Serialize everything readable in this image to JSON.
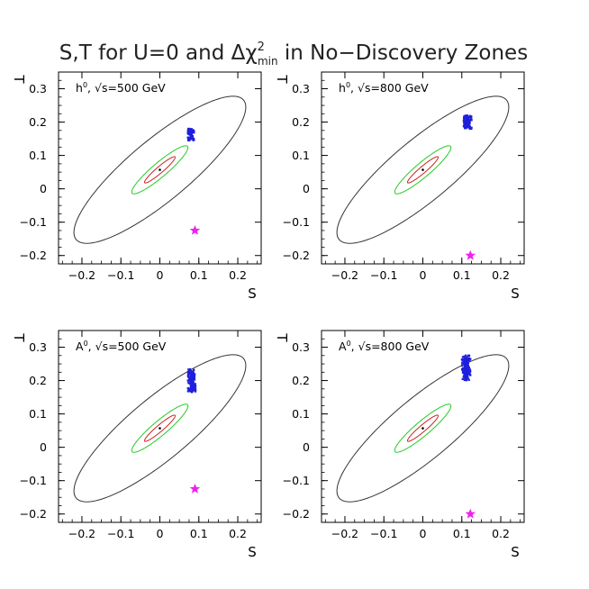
{
  "figure_title": "S,T for U=0 and Δχ²min in No−Discovery Zones",
  "title_parts": {
    "pre": "S,T for U=0 and Δχ",
    "sup": "2",
    "sub": "min",
    "post": " in No−Discovery Zones"
  },
  "colors": {
    "outer": "#333333",
    "green": "#22cc22",
    "red": "#cc2222",
    "blue": "#1f1fdd",
    "star": "#ee22ee"
  },
  "chart_data": [
    {
      "type": "scatter",
      "panel": "top-left",
      "label": "h⁰, √s=500 GeV",
      "label_parts": {
        "particle": "h",
        "sup": "0",
        "sep": ", ",
        "rest": "√s=500 GeV"
      },
      "xlabel": "S",
      "ylabel": "T",
      "xlim": [
        -0.26,
        0.26
      ],
      "ylim": [
        -0.225,
        0.35
      ],
      "xticks": [
        -0.2,
        -0.1,
        0,
        0.1,
        0.2
      ],
      "xtick_labels": [
        "−0.2",
        "−0.1",
        "0",
        "0.1",
        "0.2"
      ],
      "yticks": [
        -0.2,
        -0.1,
        0,
        0.1,
        0.2,
        0.3
      ],
      "ytick_labels": [
        "−0.2",
        "−0.1",
        "0",
        "0.1",
        "0.2",
        "0.3"
      ],
      "center": [
        0.0,
        0.057
      ],
      "ellipses": [
        {
          "name": "outer",
          "a": 0.3,
          "b": 0.085,
          "angle_deg": 45
        },
        {
          "name": "green",
          "a": 0.1,
          "b": 0.02,
          "angle_deg": 45
        },
        {
          "name": "red",
          "a": 0.055,
          "b": 0.009,
          "angle_deg": 45
        }
      ],
      "cluster": {
        "s_range": [
          0.072,
          0.088
        ],
        "t_range": [
          0.145,
          0.18
        ]
      },
      "star": {
        "s": 0.09,
        "t": -0.125
      }
    },
    {
      "type": "scatter",
      "panel": "top-right",
      "label": "h⁰, √s=800 GeV",
      "label_parts": {
        "particle": "h",
        "sup": "0",
        "sep": ", ",
        "rest": "√s=800 GeV"
      },
      "xlabel": "S",
      "ylabel": "T",
      "xlim": [
        -0.26,
        0.26
      ],
      "ylim": [
        -0.225,
        0.35
      ],
      "xticks": [
        -0.2,
        -0.1,
        0,
        0.1,
        0.2
      ],
      "xtick_labels": [
        "−0.2",
        "−0.1",
        "0",
        "0.1",
        "0.2"
      ],
      "yticks": [
        -0.2,
        -0.1,
        0,
        0.1,
        0.2,
        0.3
      ],
      "ytick_labels": [
        "−0.2",
        "−0.1",
        "0",
        "0.1",
        "0.2",
        "0.3"
      ],
      "center": [
        0.0,
        0.057
      ],
      "ellipses": [
        {
          "name": "outer",
          "a": 0.3,
          "b": 0.085,
          "angle_deg": 45
        },
        {
          "name": "green",
          "a": 0.1,
          "b": 0.02,
          "angle_deg": 45
        },
        {
          "name": "red",
          "a": 0.055,
          "b": 0.009,
          "angle_deg": 45
        }
      ],
      "cluster": {
        "s_range": [
          0.105,
          0.125
        ],
        "t_range": [
          0.18,
          0.22
        ]
      },
      "star": {
        "s": 0.122,
        "t": -0.2
      }
    },
    {
      "type": "scatter",
      "panel": "bottom-left",
      "label": "A⁰, √s=500 GeV",
      "label_parts": {
        "particle": "A",
        "sup": "0",
        "sep": ", ",
        "rest": "√s=500 GeV"
      },
      "xlabel": "S",
      "ylabel": "T",
      "xlim": [
        -0.26,
        0.26
      ],
      "ylim": [
        -0.225,
        0.35
      ],
      "xticks": [
        -0.2,
        -0.1,
        0,
        0.1,
        0.2
      ],
      "xtick_labels": [
        "−0.2",
        "−0.1",
        "0",
        "0.1",
        "0.2"
      ],
      "yticks": [
        -0.2,
        -0.1,
        0,
        0.1,
        0.2,
        0.3
      ],
      "ytick_labels": [
        "−0.2",
        "−0.1",
        "0",
        "0.1",
        "0.2",
        "0.3"
      ],
      "center": [
        0.0,
        0.057
      ],
      "ellipses": [
        {
          "name": "outer",
          "a": 0.3,
          "b": 0.085,
          "angle_deg": 45
        },
        {
          "name": "green",
          "a": 0.1,
          "b": 0.02,
          "angle_deg": 45
        },
        {
          "name": "red",
          "a": 0.055,
          "b": 0.009,
          "angle_deg": 45
        }
      ],
      "cluster": {
        "s_range": [
          0.072,
          0.092
        ],
        "t_range": [
          0.165,
          0.235
        ]
      },
      "star": {
        "s": 0.09,
        "t": -0.125
      }
    },
    {
      "type": "scatter",
      "panel": "bottom-right",
      "label": "A⁰, √s=800 GeV",
      "label_parts": {
        "particle": "A",
        "sup": "0",
        "sep": ", ",
        "rest": "√s=800 GeV"
      },
      "xlabel": "S",
      "ylabel": "T",
      "xlim": [
        -0.26,
        0.26
      ],
      "ylim": [
        -0.225,
        0.35
      ],
      "xticks": [
        -0.2,
        -0.1,
        0,
        0.1,
        0.2
      ],
      "xtick_labels": [
        "−0.2",
        "−0.1",
        "0",
        "0.1",
        "0.2"
      ],
      "yticks": [
        -0.2,
        -0.1,
        0,
        0.1,
        0.2,
        0.3
      ],
      "ytick_labels": [
        "−0.2",
        "−0.1",
        "0",
        "0.1",
        "0.2",
        "0.3"
      ],
      "center": [
        0.0,
        0.057
      ],
      "ellipses": [
        {
          "name": "outer",
          "a": 0.3,
          "b": 0.085,
          "angle_deg": 45
        },
        {
          "name": "green",
          "a": 0.1,
          "b": 0.02,
          "angle_deg": 45
        },
        {
          "name": "red",
          "a": 0.055,
          "b": 0.009,
          "angle_deg": 45
        }
      ],
      "cluster": {
        "s_range": [
          0.1,
          0.122
        ],
        "t_range": [
          0.2,
          0.275
        ]
      },
      "star": {
        "s": 0.122,
        "t": -0.2
      }
    }
  ]
}
